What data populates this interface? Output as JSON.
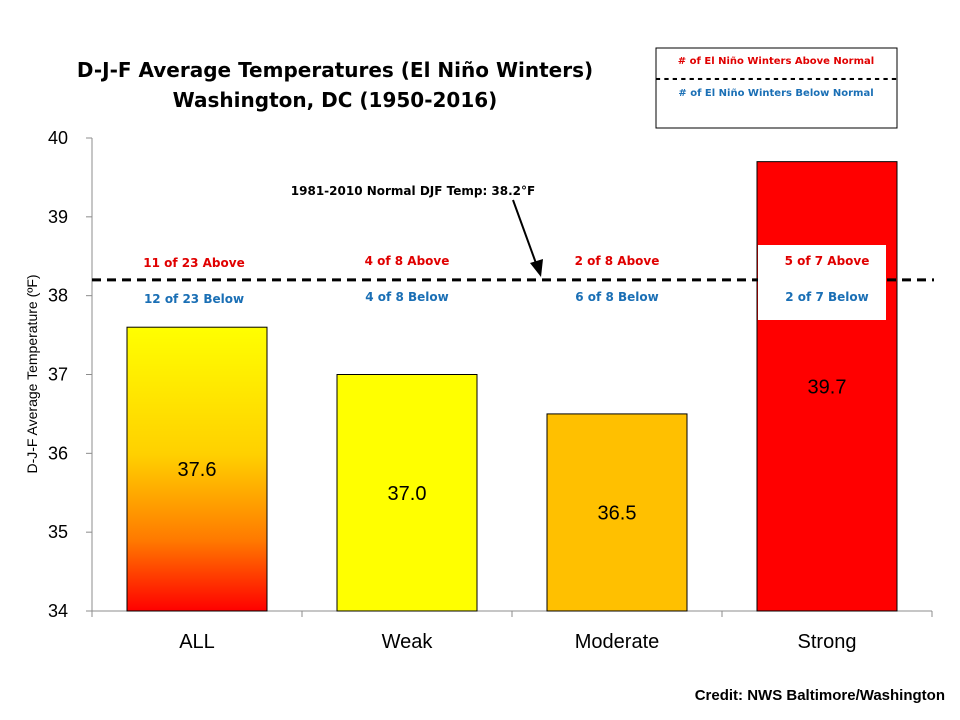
{
  "chart_data": {
    "type": "bar",
    "title_line1": "D-J-F Average Temperatures (El Niño Winters)",
    "title_line2": "Washington, DC (1950-2016)",
    "xlabel": "",
    "ylabel": "D-J-F Average Temperature (ºF)",
    "ylim": [
      34,
      40
    ],
    "yticks": [
      34,
      35,
      36,
      37,
      38,
      39,
      40
    ],
    "categories": [
      "ALL",
      "Weak",
      "Moderate",
      "Strong"
    ],
    "values": [
      37.6,
      37.0,
      36.5,
      39.7
    ],
    "value_labels": [
      "37.6",
      "37.0",
      "36.5",
      "39.7"
    ],
    "bar_colors": [
      "gradient-yellow-red",
      "#ffff00",
      "#ffc000",
      "#ff0000"
    ],
    "above_labels": [
      "11 of 23 Above",
      "4 of 8 Above",
      "2 of 8 Above",
      "5 of 7 Above"
    ],
    "below_labels": [
      "12 of 23 Below",
      "4 of 8 Below",
      "6 of 8 Below",
      "2 of 7 Below"
    ],
    "normal_line": {
      "value": 38.2,
      "label": "1981-2010  Normal DJF Temp: 38.2°F"
    },
    "legend": {
      "above": "# of El Niño Winters Above Normal",
      "separator": "-----------------------------",
      "below": "# of El Niño Winters Below Normal"
    },
    "grid": false,
    "legend_position": "top-right"
  },
  "colors": {
    "above": "#e00000",
    "below": "#1a6fb5",
    "weak": "#ffff00",
    "moderate": "#ffc000",
    "strong": "#ff0000"
  },
  "credit": "Credit: NWS Baltimore/Washington"
}
